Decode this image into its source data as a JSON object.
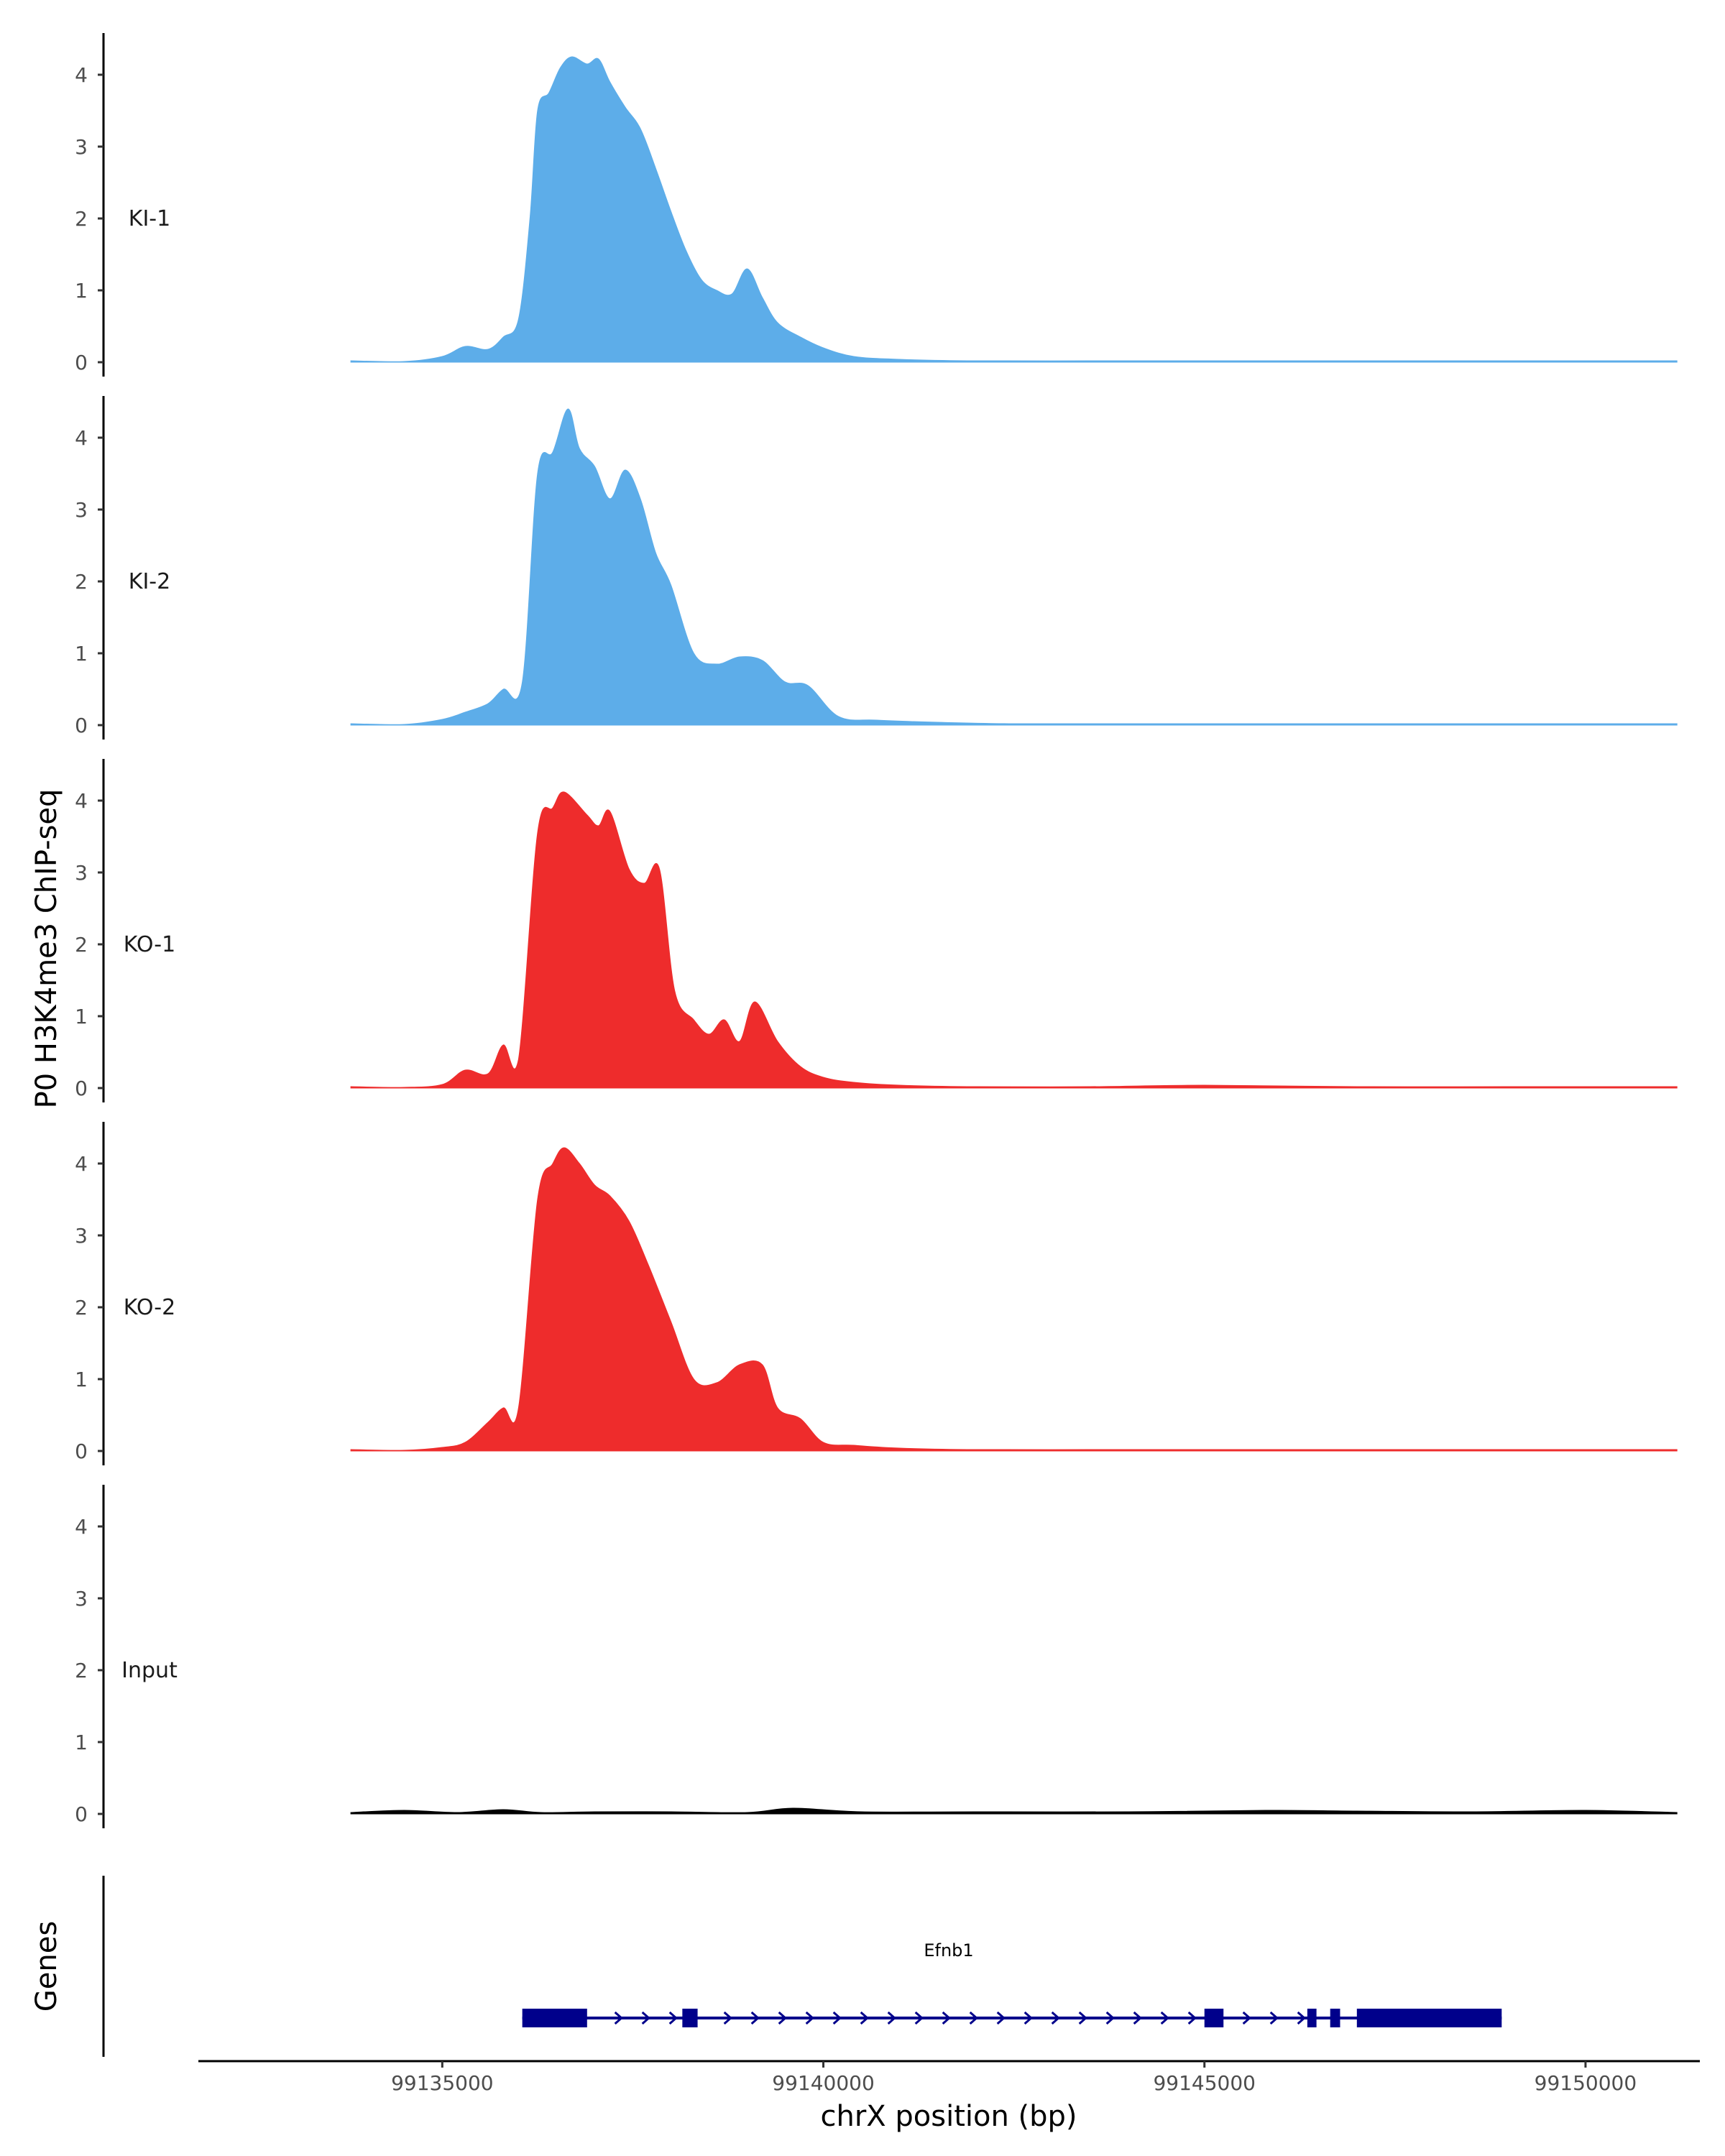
{
  "chart_data": {
    "type": "area",
    "ylabel": "P0 H3K4me3 ChIP-seq",
    "xlabel": "chrX position (bp)",
    "genes_label": "Genes",
    "xlim": [
      99131800,
      99151500
    ],
    "ylim": [
      0,
      4.6
    ],
    "x_ticks": [
      {
        "value": 99135000,
        "label": "99135000"
      },
      {
        "value": 99140000,
        "label": "99140000"
      },
      {
        "value": 99145000,
        "label": "99145000"
      },
      {
        "value": 99150000,
        "label": "99150000"
      }
    ],
    "y_ticks": [
      {
        "value": 0,
        "label": "0"
      },
      {
        "value": 1,
        "label": "1"
      },
      {
        "value": 2,
        "label": "2"
      },
      {
        "value": 3,
        "label": "3"
      },
      {
        "value": 4,
        "label": "4"
      }
    ],
    "tracks": [
      {
        "name": "KI-1",
        "color": "#5dade9",
        "x": [
          99133800,
          99134500,
          99135000,
          99135300,
          99135600,
          99135800,
          99136000,
          99136150,
          99136250,
          99136400,
          99136550,
          99136700,
          99136900,
          99137050,
          99137200,
          99137400,
          99137600,
          99137800,
          99138000,
          99138200,
          99138400,
          99138600,
          99138800,
          99139000,
          99139200,
          99139400,
          99139700,
          99140000,
          99140400,
          99141000,
          99142000,
          99143500,
          99145000,
          99147000,
          99149000,
          99151200
        ],
        "y": [
          0.02,
          0.01,
          0.08,
          0.22,
          0.18,
          0.35,
          0.6,
          2.0,
          3.5,
          3.75,
          4.1,
          4.25,
          4.15,
          4.22,
          3.9,
          3.55,
          3.25,
          2.7,
          2.1,
          1.55,
          1.15,
          1.0,
          0.95,
          1.3,
          0.9,
          0.55,
          0.35,
          0.2,
          0.08,
          0.04,
          0.02,
          0.02,
          0.02,
          0.02,
          0.02,
          0.02
        ]
      },
      {
        "name": "KI-2",
        "color": "#5dade9",
        "x": [
          99133800,
          99134500,
          99135000,
          99135300,
          99135600,
          99135800,
          99136050,
          99136250,
          99136450,
          99136650,
          99136800,
          99137000,
          99137200,
          99137400,
          99137600,
          99137800,
          99138000,
          99138300,
          99138600,
          99138900,
          99139200,
          99139500,
          99139800,
          99140200,
          99140700,
          99141500,
          99142500,
          99144000,
          99146000,
          99148000,
          99151200
        ],
        "y": [
          0.02,
          0.01,
          0.08,
          0.18,
          0.3,
          0.5,
          0.6,
          3.5,
          3.8,
          4.4,
          3.85,
          3.6,
          3.15,
          3.55,
          3.15,
          2.4,
          1.95,
          1.0,
          0.85,
          0.95,
          0.9,
          0.6,
          0.55,
          0.12,
          0.07,
          0.04,
          0.02,
          0.02,
          0.02,
          0.02,
          0.02
        ]
      },
      {
        "name": "KO-1",
        "color": "#ee2c2c",
        "x": [
          99133800,
          99134500,
          99135000,
          99135300,
          99135600,
          99135800,
          99136000,
          99136250,
          99136450,
          99136600,
          99136900,
          99137050,
          99137200,
          99137450,
          99137650,
          99137850,
          99138050,
          99138300,
          99138500,
          99138700,
          99138900,
          99139100,
          99139400,
          99139700,
          99140000,
          99140400,
          99141000,
          99142000,
          99143500,
          99145000,
          99147000,
          99149000,
          99151200
        ],
        "y": [
          0.02,
          0.01,
          0.05,
          0.25,
          0.2,
          0.6,
          0.4,
          3.55,
          3.9,
          4.12,
          3.8,
          3.65,
          3.85,
          3.05,
          2.85,
          3.05,
          1.35,
          0.95,
          0.75,
          0.95,
          0.65,
          1.2,
          0.65,
          0.3,
          0.15,
          0.08,
          0.04,
          0.02,
          0.02,
          0.04,
          0.02,
          0.02,
          0.02
        ]
      },
      {
        "name": "KO-2",
        "color": "#ee2c2c",
        "x": [
          99133800,
          99134500,
          99135000,
          99135300,
          99135600,
          99135800,
          99136000,
          99136250,
          99136450,
          99136600,
          99136800,
          99137000,
          99137200,
          99137450,
          99137700,
          99138000,
          99138300,
          99138600,
          99138900,
          99139200,
          99139400,
          99139700,
          99140000,
          99140400,
          99141000,
          99142000,
          99143500,
          99145000,
          99147000,
          99149000,
          99151200
        ],
        "y": [
          0.02,
          0.01,
          0.05,
          0.12,
          0.4,
          0.6,
          0.6,
          3.5,
          4.0,
          4.22,
          4.0,
          3.7,
          3.55,
          3.2,
          2.6,
          1.8,
          1.0,
          0.95,
          1.2,
          1.2,
          0.6,
          0.45,
          0.12,
          0.08,
          0.04,
          0.02,
          0.02,
          0.02,
          0.02,
          0.02,
          0.02
        ]
      },
      {
        "name": "Input",
        "color": "#000000",
        "x": [
          99133800,
          99134500,
          99135200,
          99135800,
          99136300,
          99137000,
          99138000,
          99139000,
          99139600,
          99140500,
          99142000,
          99144000,
          99145800,
          99147000,
          99148500,
          99150000,
          99151200
        ],
        "y": [
          0.02,
          0.05,
          0.02,
          0.06,
          0.02,
          0.03,
          0.03,
          0.02,
          0.08,
          0.03,
          0.03,
          0.03,
          0.05,
          0.04,
          0.03,
          0.05,
          0.02
        ]
      }
    ],
    "gene": {
      "name": "Efnb1",
      "start": 99136050,
      "end": 99148900,
      "strand": "+",
      "exons": [
        [
          99136050,
          99136900
        ],
        [
          99138150,
          99138350
        ],
        [
          99145000,
          99145250
        ],
        [
          99146350,
          99146470
        ],
        [
          99146650,
          99146780
        ],
        [
          99147000,
          99148900
        ]
      ],
      "color": "#00008b"
    }
  }
}
